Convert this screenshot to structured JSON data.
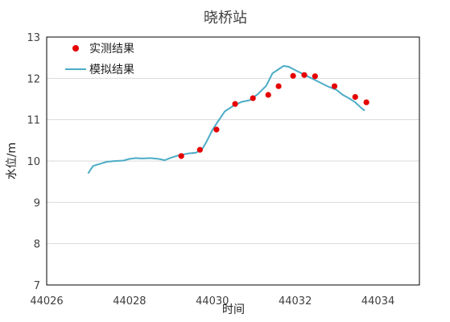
{
  "chart_data": {
    "type": "scatter",
    "title": "晓桥站",
    "xlabel": "时间",
    "ylabel": "水位/m",
    "xlim": [
      44026,
      44035
    ],
    "ylim": [
      7,
      13
    ],
    "xticks": [
      44026,
      44028,
      44030,
      44032,
      44034
    ],
    "yticks": [
      7,
      8,
      9,
      10,
      11,
      12,
      13
    ],
    "grid": "horizontal",
    "legend_position": "top-left",
    "series": [
      {
        "name": "实测结果",
        "kind": "scatter",
        "color": "#e60000",
        "x": [
          44029.25,
          44029.7,
          44030.1,
          44030.55,
          44030.98,
          44031.35,
          44031.6,
          44031.95,
          44032.22,
          44032.48,
          44032.95,
          44033.45,
          44033.72
        ],
        "y": [
          10.12,
          10.27,
          10.76,
          11.38,
          11.52,
          11.6,
          11.81,
          12.06,
          12.08,
          12.05,
          11.81,
          11.55,
          11.42
        ]
      },
      {
        "name": "模拟结果",
        "kind": "line",
        "color": "#4bacc6",
        "x": [
          44027.0,
          44027.12,
          44027.25,
          44027.45,
          44027.65,
          44027.85,
          44028.0,
          44028.15,
          44028.3,
          44028.5,
          44028.7,
          44028.85,
          44029.0,
          44029.2,
          44029.4,
          44029.6,
          44029.75,
          44029.85,
          44030.0,
          44030.15,
          44030.3,
          44030.5,
          44030.7,
          44030.9,
          44031.1,
          44031.3,
          44031.45,
          44031.6,
          44031.72,
          44031.85,
          44032.0,
          44032.2,
          44032.4,
          44032.6,
          44032.8,
          44033.0,
          44033.15,
          44033.3,
          44033.45,
          44033.6,
          44033.68
        ],
        "y": [
          9.7,
          9.88,
          9.92,
          9.98,
          10.0,
          10.01,
          10.05,
          10.07,
          10.06,
          10.07,
          10.05,
          10.02,
          10.08,
          10.14,
          10.18,
          10.2,
          10.28,
          10.45,
          10.75,
          10.98,
          11.2,
          11.33,
          11.43,
          11.47,
          11.62,
          11.82,
          12.12,
          12.22,
          12.3,
          12.28,
          12.2,
          12.1,
          12.0,
          11.9,
          11.8,
          11.72,
          11.6,
          11.52,
          11.42,
          11.28,
          11.22
        ]
      }
    ]
  }
}
